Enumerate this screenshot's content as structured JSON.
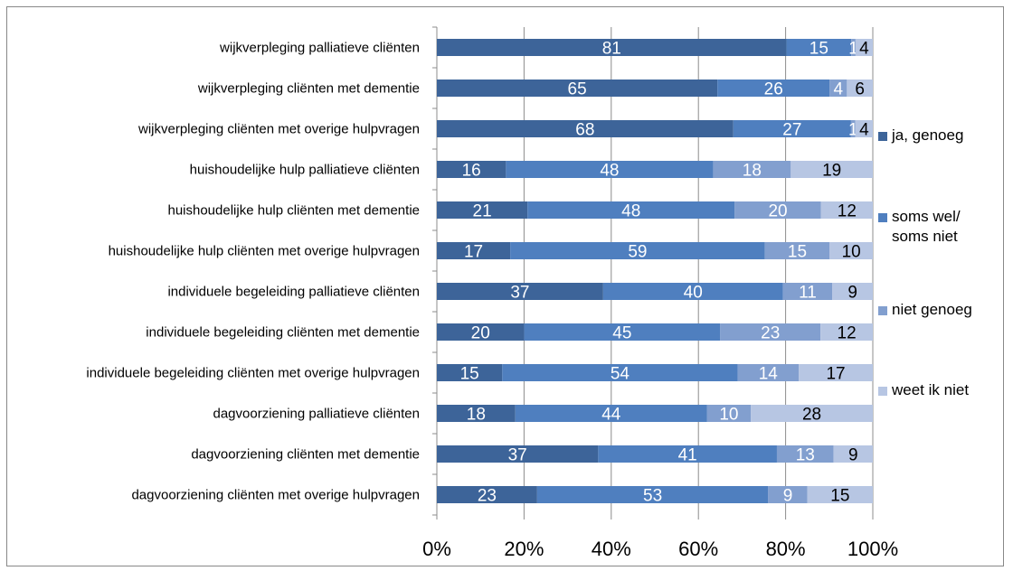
{
  "chart_data": {
    "type": "bar",
    "orientation": "horizontal",
    "stacked": "percent",
    "categories": [
      "wijkverpleging palliatieve cliënten",
      "wijkverpleging cliënten met dementie",
      "wijkverpleging cliënten met overige hulpvragen",
      "huishoudelijke hulp palliatieve cliënten",
      "huishoudelijke hulp cliënten met dementie",
      "huishoudelijke hulp cliënten met overige hulpvragen",
      "individuele begeleiding palliatieve cliënten",
      "individuele begeleiding cliënten met dementie",
      "individuele begeleiding cliënten met overige hulpvragen",
      "dagvoorziening palliatieve cliënten",
      "dagvoorziening cliënten met dementie",
      "dagvoorziening cliënten met overige hulpvragen"
    ],
    "series": [
      {
        "name": "ja, genoeg",
        "color": "#3d6499",
        "label_color": "#ffffff",
        "values": [
          81,
          65,
          68,
          16,
          21,
          17,
          37,
          20,
          15,
          18,
          37,
          23
        ]
      },
      {
        "name": "soms wel/ soms niet",
        "color": "#4f7fbf",
        "label_color": "#ffffff",
        "values": [
          15,
          26,
          27,
          48,
          48,
          59,
          40,
          45,
          54,
          44,
          41,
          53
        ]
      },
      {
        "name": "niet genoeg",
        "color": "#829fcf",
        "label_color": "#ffffff",
        "values": [
          1,
          4,
          1,
          18,
          20,
          15,
          11,
          23,
          14,
          10,
          13,
          9
        ]
      },
      {
        "name": "weet ik niet",
        "color": "#b7c6e3",
        "label_color": "#000000",
        "values": [
          4,
          6,
          4,
          19,
          12,
          10,
          9,
          12,
          17,
          28,
          9,
          15
        ]
      }
    ],
    "data_labels": [
      [
        "81",
        "15",
        "1",
        "4"
      ],
      [
        "65",
        "26",
        "4",
        "6"
      ],
      [
        "68",
        "27",
        "1",
        "4"
      ],
      [
        "16",
        "48",
        "18",
        "19"
      ],
      [
        "21",
        "48",
        "20",
        "12"
      ],
      [
        "17",
        "59",
        "15",
        "10"
      ],
      [
        "37",
        "40",
        "11",
        "9"
      ],
      [
        "20",
        "45",
        "23",
        "12"
      ],
      [
        "15",
        "54",
        "14",
        "17"
      ],
      [
        "18",
        "44",
        "10",
        "28"
      ],
      [
        "37",
        "41",
        "13",
        "9"
      ],
      [
        "23",
        "53",
        "9",
        "15"
      ]
    ],
    "x_ticks": [
      "0%",
      "20%",
      "40%",
      "60%",
      "80%",
      "100%"
    ],
    "xlim": [
      0,
      100
    ],
    "grid": "vertical",
    "legend_position": "right",
    "legend": [
      "ja, genoeg",
      "soms wel/\nsoms niet",
      "niet genoeg",
      "weet ik niet"
    ],
    "title": "",
    "xlabel": "",
    "ylabel": ""
  }
}
